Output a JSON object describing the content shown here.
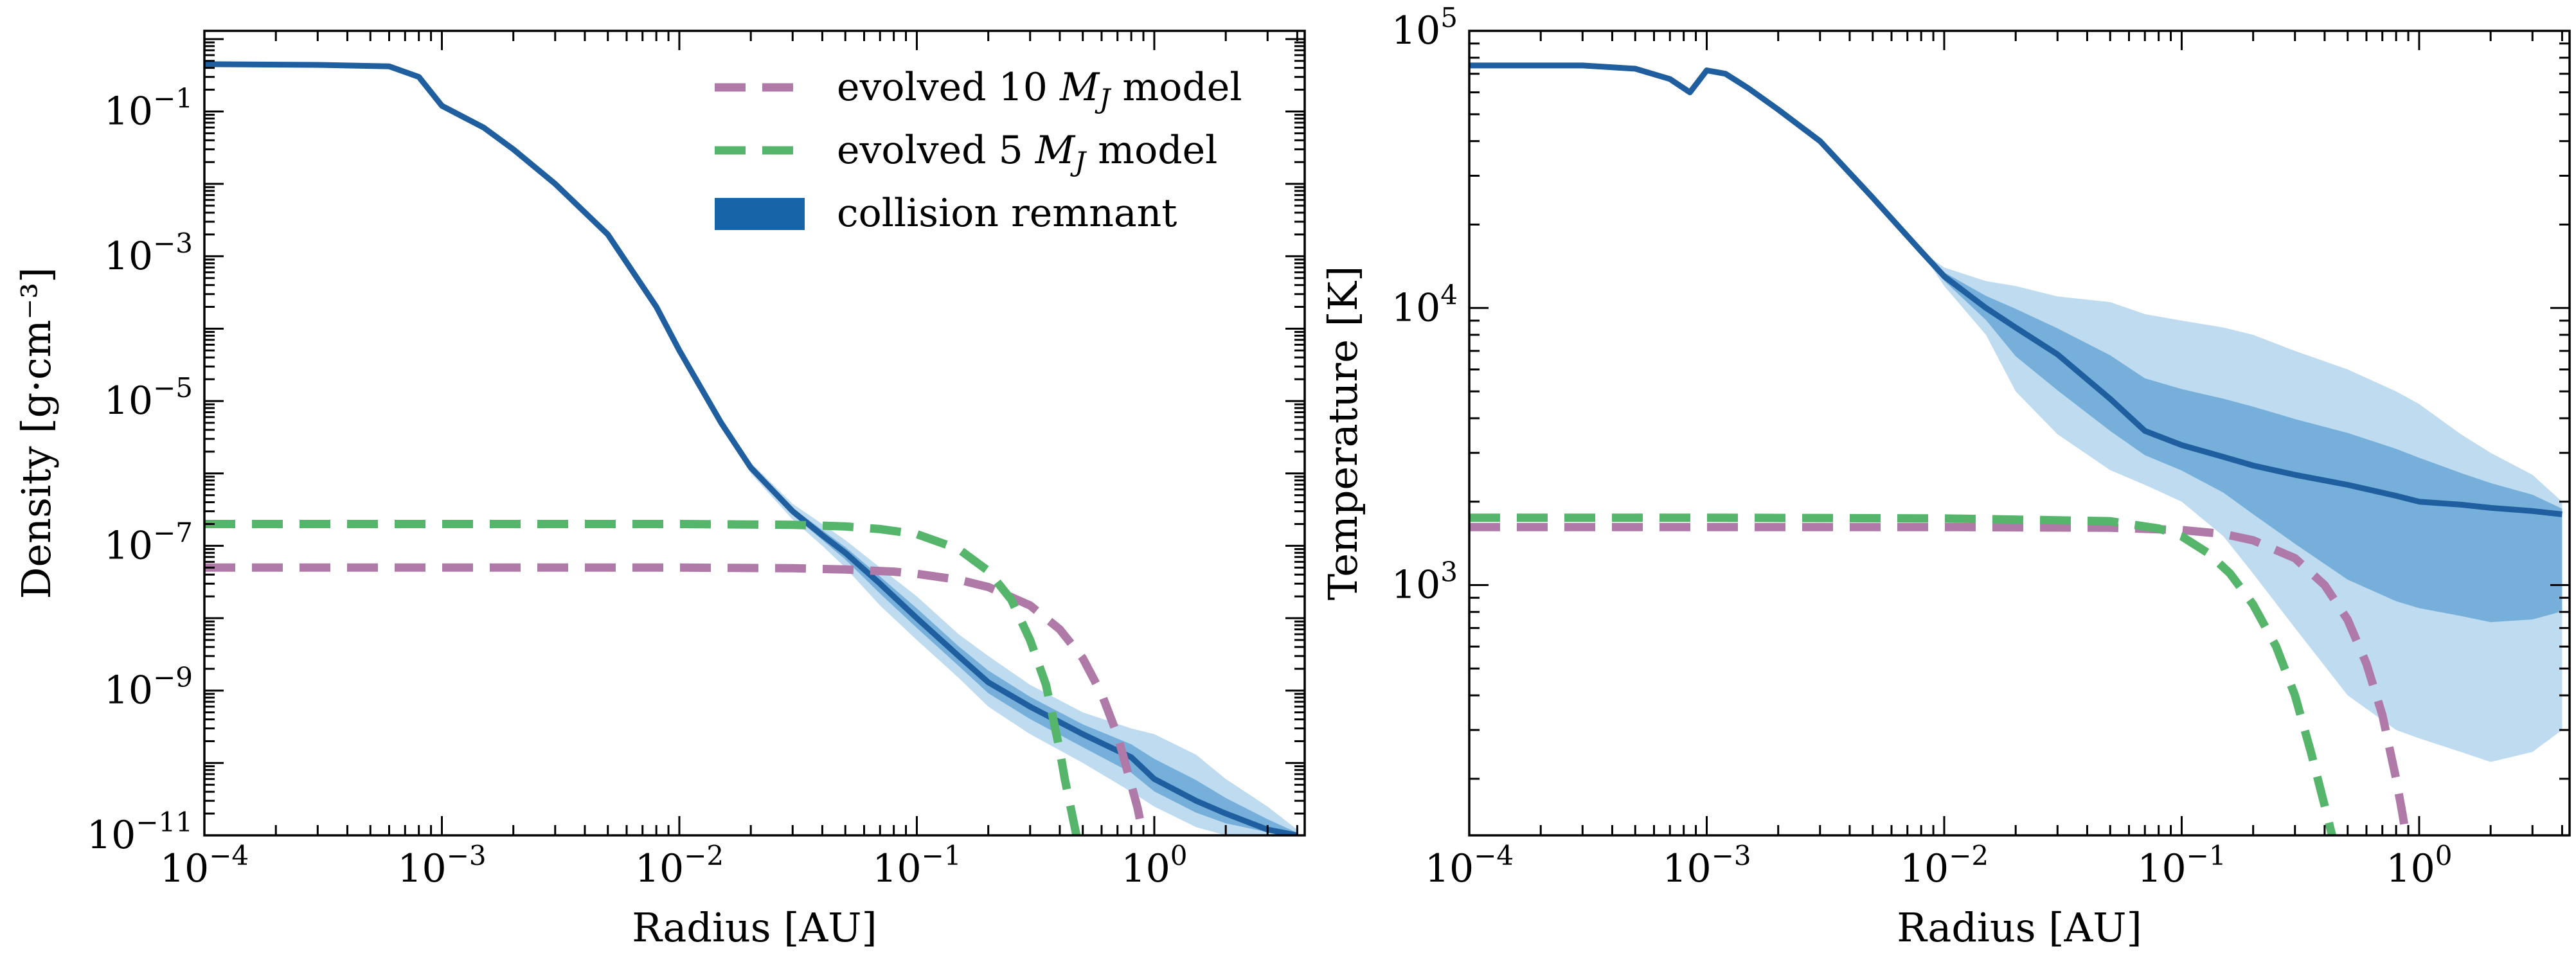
{
  "figure": {
    "colors": {
      "evolved10": "#b07aa8",
      "evolved5": "#55b56a",
      "remnant_dark": "#1f5f9f",
      "remnant_mid": "#3a8cc8",
      "remnant_light": "#a8cfe9",
      "remnant_legend": "#1864a8"
    }
  },
  "chart_data": [
    {
      "type": "line",
      "panel": "left",
      "xlabel": "Radius [AU]",
      "ylabel": "Density [g·cm⁻³]",
      "xscale": "log",
      "yscale": "log",
      "xlim": [
        0.0001,
        4.3
      ],
      "ylim": [
        1e-11,
        1.3
      ],
      "xticks": [
        {
          "value": 0.0001,
          "base": "10",
          "exp": "−4"
        },
        {
          "value": 0.001,
          "base": "10",
          "exp": "−3"
        },
        {
          "value": 0.01,
          "base": "10",
          "exp": "−2"
        },
        {
          "value": 0.1,
          "base": "10",
          "exp": "−1"
        },
        {
          "value": 1,
          "base": "10",
          "exp": "0"
        }
      ],
      "yticks": [
        {
          "value": 1e-11,
          "base": "10",
          "exp": "−11"
        },
        {
          "value": 1e-09,
          "base": "10",
          "exp": "−9"
        },
        {
          "value": 1e-07,
          "base": "10",
          "exp": "−7"
        },
        {
          "value": 1e-05,
          "base": "10",
          "exp": "−5"
        },
        {
          "value": 0.001,
          "base": "10",
          "exp": "−3"
        },
        {
          "value": 0.1,
          "base": "10",
          "exp": "−1"
        }
      ],
      "legend": {
        "position": "upper right",
        "entries": [
          {
            "label_prefix": "evolved 10 ",
            "label_sym": "M",
            "label_sub": "J",
            "label_suffix": " model",
            "style": "dashed",
            "color_key": "evolved10"
          },
          {
            "label_prefix": "evolved 5 ",
            "label_sym": "M",
            "label_sub": "J",
            "label_suffix": " model",
            "style": "dashed",
            "color_key": "evolved5"
          },
          {
            "label_prefix": "collision remnant",
            "label_sym": "",
            "label_sub": "",
            "label_suffix": "",
            "style": "patch",
            "color_key": "remnant_legend"
          }
        ]
      },
      "series": [
        {
          "name": "collision remnant",
          "kind": "band",
          "x": [
            0.0001,
            0.0003,
            0.0006,
            0.0008,
            0.001,
            0.0015,
            0.002,
            0.003,
            0.005,
            0.008,
            0.01,
            0.015,
            0.02,
            0.03,
            0.04,
            0.05,
            0.07,
            0.1,
            0.15,
            0.2,
            0.3,
            0.5,
            0.8,
            1.0,
            1.5,
            2.0,
            3.0,
            4.0
          ],
          "center": [
            0.45,
            0.44,
            0.42,
            0.3,
            0.12,
            0.06,
            0.03,
            0.01,
            0.002,
            0.0002,
            5e-05,
            5e-06,
            1.2e-06,
            3e-07,
            1.4e-07,
            8e-08,
            3e-08,
            1e-08,
            3e-09,
            1.3e-09,
            6e-10,
            2.5e-10,
            1.2e-10,
            6e-11,
            3e-11,
            2e-11,
            1.2e-11,
            1e-11
          ],
          "upper": [
            0.45,
            0.44,
            0.42,
            0.3,
            0.12,
            0.06,
            0.03,
            0.01,
            0.002,
            0.0002,
            5e-05,
            5e-06,
            1.4e-06,
            3.8e-07,
            2e-07,
            1.2e-07,
            5e-08,
            2e-08,
            6e-09,
            3e-09,
            1.2e-09,
            5e-10,
            3e-10,
            2.5e-10,
            1.3e-10,
            6e-11,
            2.5e-11,
            1.2e-11
          ],
          "lower": [
            0.45,
            0.44,
            0.42,
            0.3,
            0.12,
            0.06,
            0.03,
            0.01,
            0.002,
            0.0002,
            5e-05,
            5e-06,
            1e-06,
            2.3e-07,
            1e-07,
            5e-08,
            1.5e-08,
            5e-09,
            1.5e-09,
            6e-10,
            2.5e-10,
            1e-10,
            4e-11,
            2.5e-11,
            1.3e-11,
            1e-11,
            1e-11,
            1e-11
          ]
        },
        {
          "name": "evolved 10 M_J model",
          "kind": "line",
          "color_key": "evolved10",
          "x": [
            0.0001,
            0.001,
            0.01,
            0.03,
            0.05,
            0.08,
            0.1,
            0.15,
            0.2,
            0.3,
            0.4,
            0.5,
            0.6,
            0.7,
            0.8,
            0.85,
            0.88,
            0.9
          ],
          "y": [
            5e-08,
            5e-08,
            5e-08,
            4.9e-08,
            4.7e-08,
            4.4e-08,
            4.1e-08,
            3.4e-08,
            2.7e-08,
            1.5e-08,
            7e-09,
            2.8e-09,
            9e-10,
            2.4e-10,
            5e-11,
            2.4e-11,
            1.4e-11,
            1e-11
          ]
        },
        {
          "name": "evolved 5 M_J model",
          "kind": "line",
          "color_key": "evolved5",
          "x": [
            0.0001,
            0.001,
            0.01,
            0.03,
            0.05,
            0.07,
            0.1,
            0.15,
            0.2,
            0.25,
            0.3,
            0.35,
            0.4,
            0.42,
            0.45,
            0.47
          ],
          "y": [
            2e-07,
            2e-07,
            2e-07,
            1.95e-07,
            1.85e-07,
            1.7e-07,
            1.45e-07,
            9e-08,
            4.5e-08,
            1.8e-08,
            5e-09,
            1.2e-09,
            1.5e-10,
            6e-11,
            2e-11,
            1e-11
          ]
        }
      ]
    },
    {
      "type": "line",
      "panel": "right",
      "xlabel": "Radius [AU]",
      "ylabel": "Temperature [K]",
      "xscale": "log",
      "yscale": "log",
      "xlim": [
        0.0001,
        4.3
      ],
      "ylim": [
        125,
        100000
      ],
      "xticks": [
        {
          "value": 0.0001,
          "base": "10",
          "exp": "−4"
        },
        {
          "value": 0.001,
          "base": "10",
          "exp": "−3"
        },
        {
          "value": 0.01,
          "base": "10",
          "exp": "−2"
        },
        {
          "value": 0.1,
          "base": "10",
          "exp": "−1"
        },
        {
          "value": 1,
          "base": "10",
          "exp": "0"
        }
      ],
      "yticks": [
        {
          "value": 1000,
          "base": "10",
          "exp": "3"
        },
        {
          "value": 10000,
          "base": "10",
          "exp": "4"
        },
        {
          "value": 100000,
          "base": "10",
          "exp": "5"
        }
      ],
      "series": [
        {
          "name": "collision remnant",
          "kind": "band",
          "x": [
            0.0001,
            0.0003,
            0.0005,
            0.0007,
            0.00085,
            0.001,
            0.0012,
            0.0015,
            0.002,
            0.003,
            0.005,
            0.008,
            0.01,
            0.015,
            0.02,
            0.03,
            0.05,
            0.07,
            0.1,
            0.15,
            0.2,
            0.3,
            0.5,
            0.8,
            1.0,
            1.5,
            2.0,
            3.0,
            4.0
          ],
          "center": [
            75000,
            75000,
            73000,
            67000,
            60000,
            72000,
            70000,
            62000,
            52000,
            40000,
            25000,
            16000,
            13000,
            10000,
            8500,
            6800,
            4700,
            3600,
            3200,
            2900,
            2700,
            2500,
            2300,
            2100,
            2000,
            1950,
            1900,
            1850,
            1800
          ],
          "upper": [
            75000,
            75000,
            73000,
            67000,
            60000,
            72000,
            70000,
            62000,
            52000,
            40000,
            25000,
            16000,
            14000,
            12500,
            12000,
            11000,
            10500,
            9500,
            9000,
            8500,
            8000,
            7000,
            6000,
            5000,
            4500,
            3500,
            3000,
            2500,
            2000
          ],
          "lower": [
            75000,
            75000,
            73000,
            67000,
            60000,
            72000,
            70000,
            62000,
            52000,
            40000,
            25000,
            16000,
            12000,
            8000,
            5000,
            3500,
            2600,
            2300,
            2000,
            1500,
            1100,
            700,
            400,
            300,
            280,
            250,
            230,
            250,
            300
          ]
        },
        {
          "name": "evolved 10 M_J model",
          "kind": "line",
          "color_key": "evolved10",
          "x": [
            0.0001,
            0.001,
            0.01,
            0.05,
            0.1,
            0.15,
            0.2,
            0.3,
            0.4,
            0.5,
            0.6,
            0.7,
            0.8,
            0.85,
            0.88
          ],
          "y": [
            1620,
            1620,
            1620,
            1610,
            1580,
            1530,
            1450,
            1250,
            1000,
            750,
            520,
            340,
            200,
            150,
            125
          ]
        },
        {
          "name": "evolved 5 M_J model",
          "kind": "line",
          "color_key": "evolved5",
          "x": [
            0.0001,
            0.001,
            0.01,
            0.05,
            0.08,
            0.1,
            0.13,
            0.16,
            0.2,
            0.25,
            0.3,
            0.35,
            0.4,
            0.43
          ],
          "y": [
            1750,
            1750,
            1740,
            1700,
            1600,
            1500,
            1300,
            1100,
            850,
            600,
            400,
            250,
            160,
            125
          ]
        }
      ]
    }
  ]
}
